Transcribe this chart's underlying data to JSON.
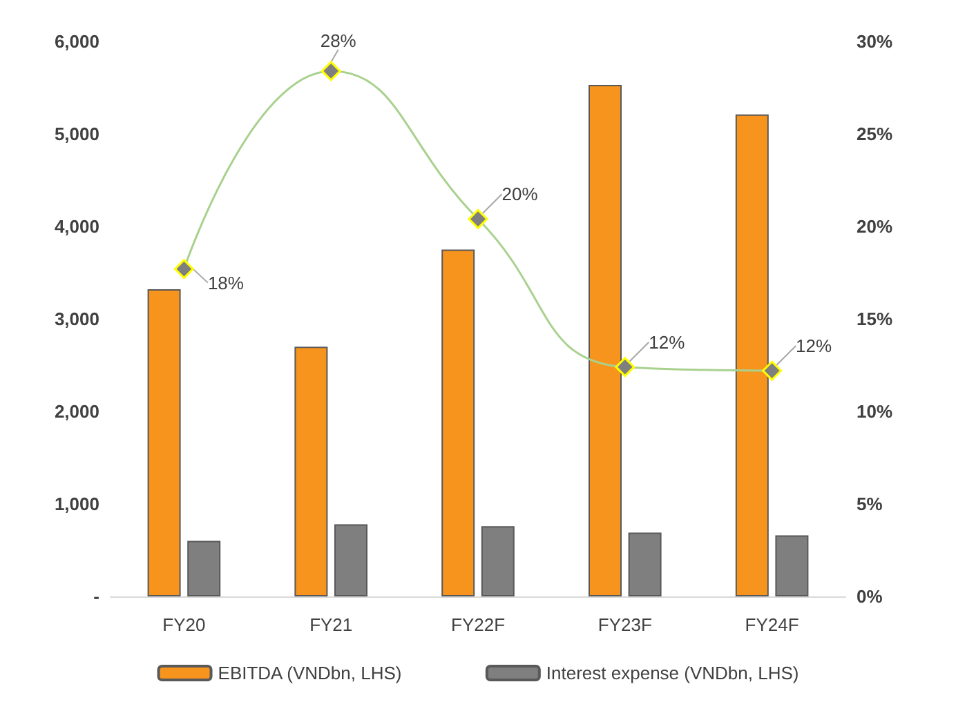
{
  "chart_data": {
    "type": "bar",
    "categories": [
      "FY20",
      "FY21",
      "FY22F",
      "FY23F",
      "FY24F"
    ],
    "series": [
      {
        "name": "EBITDA (VNDbn, LHS)",
        "color": "#f7941d",
        "values": [
          3320,
          2700,
          3750,
          5530,
          5210
        ]
      },
      {
        "name": "Interest expense (VNDbn, LHS)",
        "color": "#7f7f7f",
        "values": [
          600,
          780,
          760,
          690,
          660
        ]
      },
      {
        "type": "line",
        "axis": "y2",
        "color": "#a9d18e",
        "marker": "diamond",
        "values": [
          17.7,
          28.4,
          20.4,
          12.4,
          12.2
        ],
        "value_labels": [
          "18%",
          "28%",
          "20%",
          "12%",
          "12%"
        ]
      }
    ],
    "ylim": [
      0,
      6000
    ],
    "yticks": [
      {
        "value": 0,
        "label": "-"
      },
      {
        "value": 1000,
        "label": "1,000"
      },
      {
        "value": 2000,
        "label": "2,000"
      },
      {
        "value": 3000,
        "label": "3,000"
      },
      {
        "value": 4000,
        "label": "4,000"
      },
      {
        "value": 5000,
        "label": "5,000"
      },
      {
        "value": 6000,
        "label": "6,000"
      }
    ],
    "y2lim": [
      0,
      30
    ],
    "y2ticks": [
      {
        "value": 0,
        "label": "0%"
      },
      {
        "value": 5,
        "label": "5%"
      },
      {
        "value": 10,
        "label": "10%"
      },
      {
        "value": 15,
        "label": "15%"
      },
      {
        "value": 20,
        "label": "20%"
      },
      {
        "value": 25,
        "label": "25%"
      },
      {
        "value": 30,
        "label": "30%"
      }
    ],
    "grid": false,
    "legend": "bottom"
  }
}
